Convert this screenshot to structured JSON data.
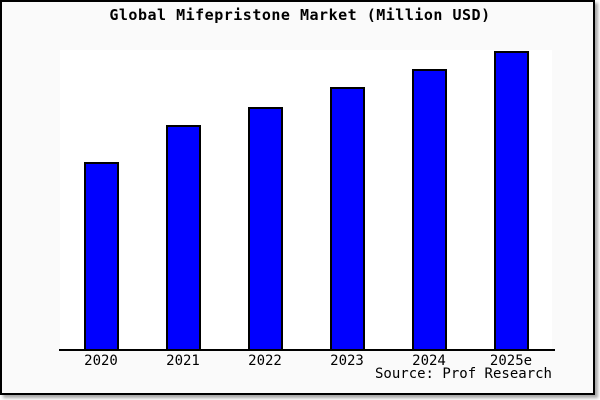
{
  "title": "Global Mifepristone Market (Million USD)",
  "source": "Source: Prof Research",
  "colors": {
    "bar_fill": "#0000ff",
    "bar_edge": "#000000",
    "outer_background": "#fafafa",
    "plot_background": "#ffffff",
    "axis_line": "#000000",
    "frame_border": "#000000",
    "text": "#000000"
  },
  "chart_data": {
    "type": "bar",
    "title": "Global Mifepristone Market (Million USD)",
    "categories": [
      "2020",
      "2021",
      "2022",
      "2023",
      "2024",
      "2025e"
    ],
    "values": [
      62.9,
      75.3,
      81.3,
      88.0,
      94.0,
      100.0
    ],
    "values_unit": "percent of tallest bar (no y-axis ticks or labels are shown in the chart)",
    "series": [
      {
        "name": "Global Mifepristone Market",
        "values": [
          62.9,
          75.3,
          81.3,
          88.0,
          94.0,
          100.0
        ]
      }
    ],
    "xlabel": "",
    "ylabel": "",
    "ylim": [
      0,
      100.3
    ],
    "grid": false,
    "legend_position": "none",
    "bar_color": "#0000ff",
    "bar_edge_color": "#000000",
    "annotations": [
      "Source: Prof Research"
    ]
  }
}
